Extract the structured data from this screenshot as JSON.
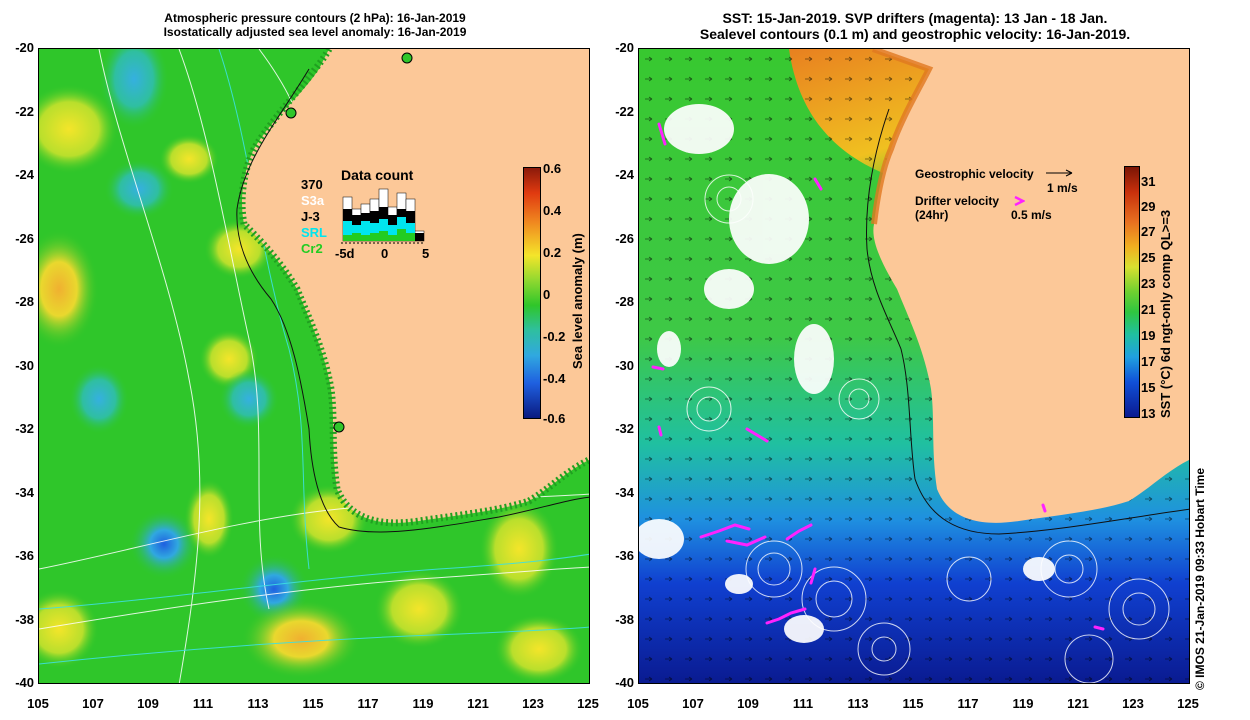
{
  "left_panel": {
    "title_line1": "Atmospheric pressure contours (2 hPa): 16-Jan-2019",
    "title_line2": "Isostatically adjusted sea level anomaly: 16-Jan-2019",
    "y_ticks": [
      "-20",
      "-22",
      "-24",
      "-26",
      "-28",
      "-30",
      "-32",
      "-34",
      "-36",
      "-38",
      "-40"
    ],
    "x_ticks": [
      "105",
      "107",
      "109",
      "111",
      "113",
      "115",
      "117",
      "119",
      "121",
      "123",
      "125"
    ],
    "colorbar": {
      "label": "Sea level anomaly (m)",
      "ticks": [
        "0.6",
        "0.4",
        "0.2",
        "0",
        "-0.2",
        "-0.4",
        "-0.6"
      ]
    },
    "data_count": {
      "title": "Data count",
      "satellites": [
        "370",
        "S3a",
        "J-3",
        "SRL",
        "Cr2"
      ],
      "satellite_colors": [
        "#000000",
        "#ffffff",
        "#000000",
        "#00e5ee",
        "#22cc22"
      ],
      "x_ticks": [
        "-5d",
        "0",
        "5"
      ]
    }
  },
  "right_panel": {
    "title_line1": "SST: 15-Jan-2019. SVP drifters (magenta): 13 Jan - 18 Jan.",
    "title_line2": "Sealevel contours (0.1 m) and geostrophic velocity: 16-Jan-2019.",
    "y_ticks": [
      "-20",
      "-22",
      "-24",
      "-26",
      "-28",
      "-30",
      "-32",
      "-34",
      "-36",
      "-38",
      "-40"
    ],
    "x_ticks": [
      "105",
      "107",
      "109",
      "111",
      "113",
      "115",
      "117",
      "119",
      "121",
      "123",
      "125"
    ],
    "legend": {
      "geostrophic_label": "Geostrophic velocity",
      "geostrophic_scale": "1 m/s",
      "drifter_label": "Drifter velocity",
      "drifter_sub": "(24hr)",
      "drifter_scale": "0.5 m/s"
    },
    "colorbar": {
      "label": "SST (°C) 6d ngt-only comp QL>=3",
      "ticks": [
        "31",
        "29",
        "27",
        "25",
        "23",
        "21",
        "19",
        "17",
        "15",
        "13"
      ]
    },
    "credit": "© IMOS 21-Jan-2019 09:33 Hobart Time"
  },
  "colors": {
    "land": "#fcc898",
    "ocean_green": "#2fc62a",
    "drifter": "#ff22ff"
  }
}
